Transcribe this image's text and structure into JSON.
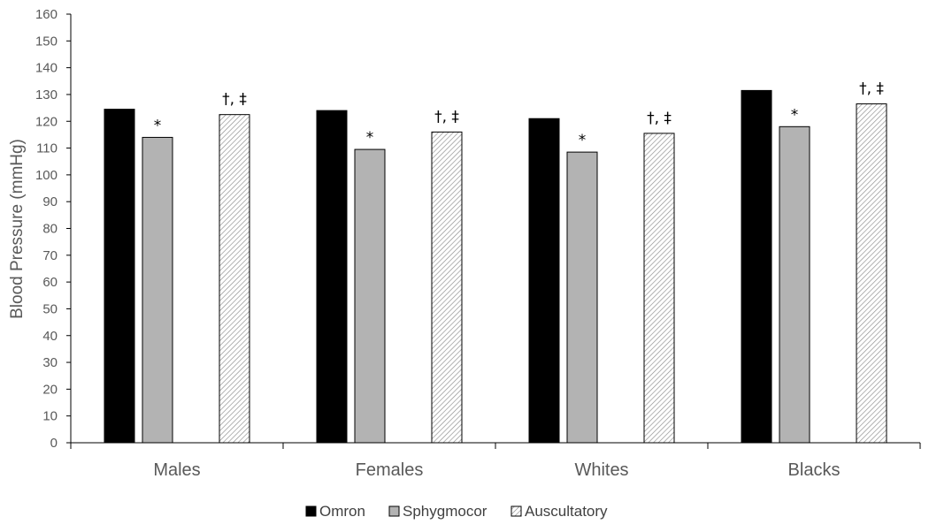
{
  "chart_data": {
    "type": "bar",
    "ylabel": "Blood Pressure (mmHg)",
    "xlabel": "",
    "ylim": [
      0,
      160
    ],
    "yticks": [
      0,
      10,
      20,
      30,
      40,
      50,
      60,
      70,
      80,
      90,
      100,
      110,
      120,
      130,
      140,
      150,
      160
    ],
    "categories": [
      "Males",
      "Females",
      "Whites",
      "Blacks"
    ],
    "series": [
      {
        "name": "Omron",
        "color": "#000000",
        "fill": "solid",
        "values": [
          124.5,
          124,
          121,
          131.5
        ]
      },
      {
        "name": "Sphygmocor",
        "color": "#b3b3b3",
        "fill": "solid",
        "values": [
          114,
          109.5,
          108.5,
          118
        ]
      },
      {
        "name": "Auscultatory",
        "color": "#ffffff",
        "fill": "diagonal-hatch",
        "values": [
          122.5,
          116,
          115.5,
          126.5
        ]
      }
    ],
    "annotations": {
      "Sphygmocor": [
        "*",
        "*",
        "*",
        "*"
      ],
      "Auscultatory": [
        "†, ‡",
        "†, ‡",
        "†, ‡",
        "†, ‡"
      ]
    },
    "legend": "bottom-center",
    "grid": false
  }
}
